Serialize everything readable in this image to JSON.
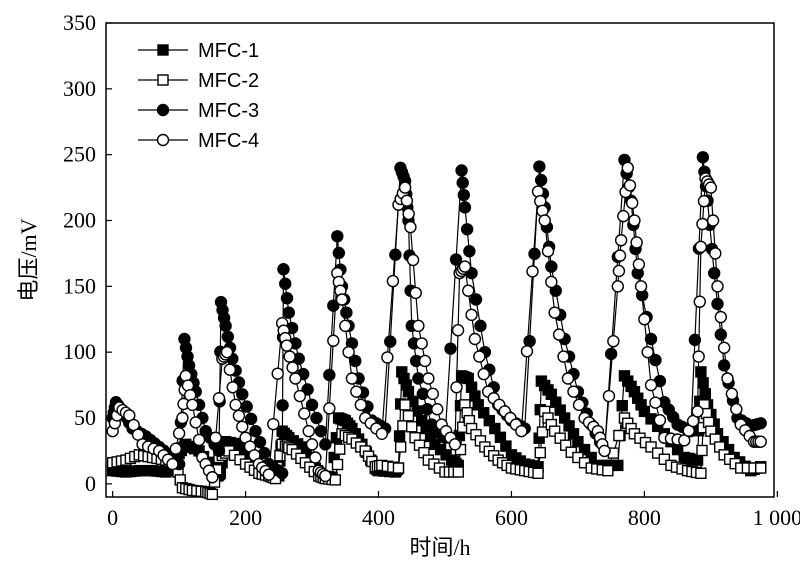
{
  "chart_data": {
    "type": "line",
    "xlabel": "时间/h",
    "ylabel": "电压/mV",
    "xlim": [
      -10,
      995
    ],
    "ylim": [
      -10,
      350
    ],
    "xticks": [
      0,
      200,
      400,
      600,
      800,
      1000
    ],
    "xtick_labels": [
      "0",
      "200",
      "400",
      "600",
      "800",
      "1 000"
    ],
    "yticks": [
      0,
      50,
      100,
      150,
      200,
      250,
      300,
      350
    ],
    "ytick_labels": [
      "0",
      "50",
      "100",
      "150",
      "200",
      "250",
      "300",
      "350"
    ],
    "legend_position": "top-left",
    "series": [
      {
        "name": "MFC-1",
        "marker": "square-filled",
        "points": [
          [
            0,
            10
          ],
          [
            20,
            9
          ],
          [
            40,
            10
          ],
          [
            60,
            10
          ],
          [
            80,
            9
          ],
          [
            90,
            12
          ],
          [
            100,
            23
          ],
          [
            110,
            30
          ],
          [
            130,
            25
          ],
          [
            150,
            12
          ],
          [
            158,
            6
          ],
          [
            162,
            8
          ],
          [
            170,
            32
          ],
          [
            190,
            30
          ],
          [
            210,
            20
          ],
          [
            230,
            10
          ],
          [
            245,
            8
          ],
          [
            250,
            6
          ],
          [
            255,
            40
          ],
          [
            265,
            35
          ],
          [
            285,
            28
          ],
          [
            305,
            12
          ],
          [
            315,
            6
          ],
          [
            330,
            5
          ],
          [
            340,
            50
          ],
          [
            350,
            48
          ],
          [
            360,
            42
          ],
          [
            375,
            30
          ],
          [
            395,
            12
          ],
          [
            400,
            10
          ],
          [
            425,
            9
          ],
          [
            430,
            12
          ],
          [
            435,
            85
          ],
          [
            445,
            70
          ],
          [
            465,
            48
          ],
          [
            485,
            30
          ],
          [
            510,
            18
          ],
          [
            520,
            14
          ],
          [
            525,
            82
          ],
          [
            535,
            80
          ],
          [
            550,
            60
          ],
          [
            575,
            42
          ],
          [
            600,
            22
          ],
          [
            620,
            15
          ],
          [
            640,
            13
          ],
          [
            645,
            78
          ],
          [
            660,
            68
          ],
          [
            680,
            50
          ],
          [
            700,
            32
          ],
          [
            730,
            14
          ],
          [
            760,
            14
          ],
          [
            770,
            82
          ],
          [
            785,
            70
          ],
          [
            800,
            55
          ],
          [
            830,
            38
          ],
          [
            860,
            20
          ],
          [
            880,
            18
          ],
          [
            885,
            85
          ],
          [
            895,
            60
          ],
          [
            910,
            38
          ],
          [
            935,
            20
          ],
          [
            960,
            10
          ],
          [
            975,
            13
          ]
        ]
      },
      {
        "name": "MFC-2",
        "marker": "square-open",
        "points": [
          [
            0,
            16
          ],
          [
            20,
            18
          ],
          [
            40,
            22
          ],
          [
            60,
            20
          ],
          [
            80,
            18
          ],
          [
            95,
            15
          ],
          [
            105,
            -3
          ],
          [
            120,
            -5
          ],
          [
            140,
            -6
          ],
          [
            150,
            -8
          ],
          [
            160,
            20
          ],
          [
            175,
            25
          ],
          [
            200,
            15
          ],
          [
            220,
            8
          ],
          [
            235,
            6
          ],
          [
            245,
            4
          ],
          [
            255,
            30
          ],
          [
            270,
            26
          ],
          [
            290,
            16
          ],
          [
            310,
            6
          ],
          [
            320,
            4
          ],
          [
            335,
            3
          ],
          [
            345,
            38
          ],
          [
            360,
            34
          ],
          [
            380,
            25
          ],
          [
            395,
            13
          ],
          [
            405,
            14
          ],
          [
            430,
            12
          ],
          [
            440,
            60
          ],
          [
            455,
            35
          ],
          [
            475,
            18
          ],
          [
            500,
            9
          ],
          [
            520,
            9
          ],
          [
            530,
            60
          ],
          [
            540,
            42
          ],
          [
            560,
            28
          ],
          [
            580,
            18
          ],
          [
            600,
            12
          ],
          [
            620,
            10
          ],
          [
            640,
            8
          ],
          [
            650,
            55
          ],
          [
            665,
            40
          ],
          [
            690,
            24
          ],
          [
            720,
            12
          ],
          [
            745,
            10
          ],
          [
            770,
            50
          ],
          [
            785,
            38
          ],
          [
            810,
            28
          ],
          [
            840,
            14
          ],
          [
            865,
            10
          ],
          [
            885,
            8
          ],
          [
            890,
            60
          ],
          [
            900,
            40
          ],
          [
            920,
            22
          ],
          [
            945,
            12
          ],
          [
            975,
            12
          ]
        ]
      },
      {
        "name": "MFC-3",
        "marker": "circle-filled",
        "points": [
          [
            0,
            50
          ],
          [
            5,
            62
          ],
          [
            15,
            55
          ],
          [
            30,
            42
          ],
          [
            50,
            36
          ],
          [
            70,
            28
          ],
          [
            90,
            20
          ],
          [
            100,
            15
          ],
          [
            108,
            110
          ],
          [
            115,
            90
          ],
          [
            125,
            70
          ],
          [
            140,
            40
          ],
          [
            160,
            25
          ],
          [
            163,
            138
          ],
          [
            170,
            120
          ],
          [
            180,
            95
          ],
          [
            195,
            68
          ],
          [
            215,
            40
          ],
          [
            235,
            15
          ],
          [
            255,
            8
          ],
          [
            257,
            163
          ],
          [
            265,
            130
          ],
          [
            280,
            95
          ],
          [
            300,
            60
          ],
          [
            320,
            30
          ],
          [
            338,
            188
          ],
          [
            345,
            150
          ],
          [
            355,
            120
          ],
          [
            370,
            80
          ],
          [
            390,
            48
          ],
          [
            410,
            42
          ],
          [
            433,
            240
          ],
          [
            440,
            230
          ],
          [
            445,
            200
          ],
          [
            450,
            120
          ],
          [
            460,
            80
          ],
          [
            480,
            45
          ],
          [
            500,
            35
          ],
          [
            525,
            238
          ],
          [
            530,
            210
          ],
          [
            540,
            160
          ],
          [
            560,
            100
          ],
          [
            580,
            60
          ],
          [
            600,
            48
          ],
          [
            620,
            42
          ],
          [
            642,
            241
          ],
          [
            650,
            210
          ],
          [
            660,
            165
          ],
          [
            680,
            110
          ],
          [
            700,
            70
          ],
          [
            720,
            45
          ],
          [
            740,
            25
          ],
          [
            770,
            246
          ],
          [
            780,
            215
          ],
          [
            790,
            160
          ],
          [
            810,
            110
          ],
          [
            830,
            62
          ],
          [
            850,
            45
          ],
          [
            870,
            40
          ],
          [
            888,
            248
          ],
          [
            895,
            215
          ],
          [
            905,
            160
          ],
          [
            920,
            90
          ],
          [
            940,
            50
          ],
          [
            960,
            44
          ],
          [
            975,
            46
          ]
        ]
      },
      {
        "name": "MFC-4",
        "marker": "circle-open",
        "points": [
          [
            0,
            40
          ],
          [
            10,
            58
          ],
          [
            25,
            52
          ],
          [
            45,
            30
          ],
          [
            70,
            25
          ],
          [
            90,
            15
          ],
          [
            105,
            50
          ],
          [
            110,
            82
          ],
          [
            120,
            60
          ],
          [
            135,
            20
          ],
          [
            150,
            5
          ],
          [
            165,
            95
          ],
          [
            172,
            100
          ],
          [
            185,
            60
          ],
          [
            200,
            35
          ],
          [
            220,
            15
          ],
          [
            235,
            7
          ],
          [
            255,
            122
          ],
          [
            262,
            105
          ],
          [
            275,
            80
          ],
          [
            295,
            40
          ],
          [
            310,
            10
          ],
          [
            320,
            6
          ],
          [
            338,
            160
          ],
          [
            345,
            140
          ],
          [
            360,
            80
          ],
          [
            380,
            50
          ],
          [
            405,
            38
          ],
          [
            430,
            212
          ],
          [
            440,
            225
          ],
          [
            448,
            195
          ],
          [
            460,
            120
          ],
          [
            475,
            80
          ],
          [
            495,
            45
          ],
          [
            515,
            30
          ],
          [
            522,
            160
          ],
          [
            530,
            165
          ],
          [
            545,
            110
          ],
          [
            565,
            70
          ],
          [
            590,
            55
          ],
          [
            615,
            40
          ],
          [
            640,
            222
          ],
          [
            650,
            200
          ],
          [
            665,
            130
          ],
          [
            685,
            80
          ],
          [
            710,
            50
          ],
          [
            730,
            40
          ],
          [
            740,
            25
          ],
          [
            760,
            150
          ],
          [
            765,
            185
          ],
          [
            775,
            240
          ],
          [
            785,
            200
          ],
          [
            795,
            150
          ],
          [
            810,
            75
          ],
          [
            830,
            35
          ],
          [
            860,
            33
          ],
          [
            880,
            55
          ],
          [
            885,
            180
          ],
          [
            892,
            232
          ],
          [
            900,
            225
          ],
          [
            910,
            150
          ],
          [
            925,
            80
          ],
          [
            945,
            45
          ],
          [
            965,
            32
          ],
          [
            975,
            32
          ]
        ]
      }
    ]
  }
}
